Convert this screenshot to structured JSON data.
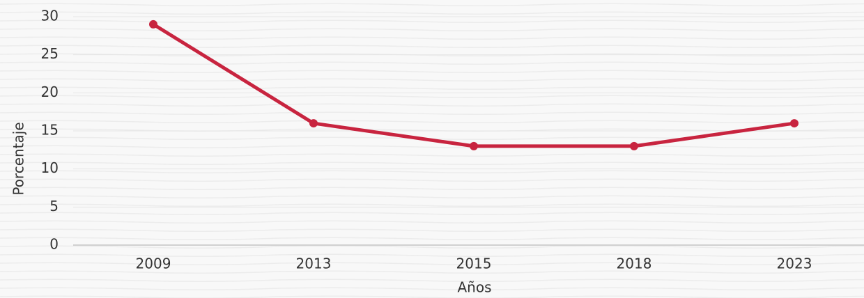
{
  "chart_data": {
    "type": "line",
    "x_label": "Años",
    "y_label": "Porcentaje",
    "categories": [
      "2009",
      "2013",
      "2015",
      "2018",
      "2023"
    ],
    "series": [
      {
        "name": "Porcentaje",
        "color": "#c8243f",
        "values": [
          29,
          16,
          13,
          13,
          16
        ]
      }
    ],
    "ylim": [
      0,
      30
    ],
    "yticks": [
      0,
      5,
      10,
      15,
      20,
      25,
      30
    ],
    "grid": true
  }
}
